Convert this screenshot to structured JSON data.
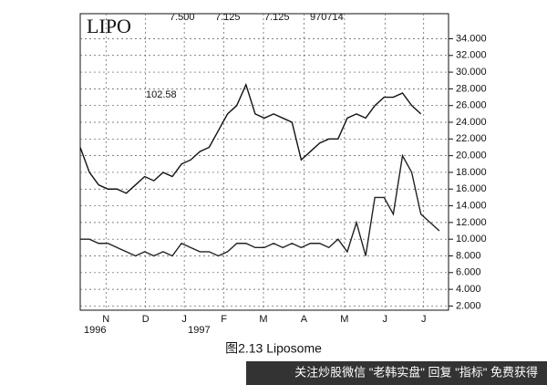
{
  "chart_data": {
    "type": "line",
    "title": "LIPO",
    "annotations": [
      "7.500",
      "7.125",
      "7.125",
      "970714",
      "102.58"
    ],
    "caption": "图2.13   Liposome",
    "watermark": "关注炒股微信 \"老韩实盘\" 回复 \"指标\" 免费获得",
    "xlim": [
      0,
      40
    ],
    "ylim": [
      1.5,
      37
    ],
    "grid": true,
    "xticks": [
      {
        "value": 2.8,
        "label": "N"
      },
      {
        "value": 7.1,
        "label": "D"
      },
      {
        "value": 11.3,
        "label": "J"
      },
      {
        "value": 15.6,
        "label": "F"
      },
      {
        "value": 19.9,
        "label": "M"
      },
      {
        "value": 24.3,
        "label": "A"
      },
      {
        "value": 28.7,
        "label": "M"
      },
      {
        "value": 33.1,
        "label": "J"
      },
      {
        "value": 37.3,
        "label": "J"
      }
    ],
    "years": [
      {
        "value": 0,
        "label": "1996"
      },
      {
        "value": 11.3,
        "label": "1997"
      }
    ],
    "yticks": [
      {
        "value": 2,
        "label": "2.000"
      },
      {
        "value": 4,
        "label": "4.000"
      },
      {
        "value": 6,
        "label": "6.000"
      },
      {
        "value": 8,
        "label": "8.000"
      },
      {
        "value": 10,
        "label": "10.000"
      },
      {
        "value": 12,
        "label": "12.000"
      },
      {
        "value": 14,
        "label": "14.000"
      },
      {
        "value": 16,
        "label": "16.000"
      },
      {
        "value": 18,
        "label": "18.000"
      },
      {
        "value": 20,
        "label": "20.000"
      },
      {
        "value": 22,
        "label": "22.000"
      },
      {
        "value": 24,
        "label": "24.000"
      },
      {
        "value": 26,
        "label": "26.000"
      },
      {
        "value": 28,
        "label": "28.000"
      },
      {
        "value": 30,
        "label": "30.000"
      },
      {
        "value": 32,
        "label": "32.000"
      },
      {
        "value": 34,
        "label": "34.000"
      }
    ],
    "series": [
      {
        "color": "#111111",
        "x": [
          0,
          1,
          2,
          3,
          4,
          5,
          6,
          7,
          8,
          9,
          10,
          11,
          12,
          13,
          14,
          15,
          16,
          17,
          18,
          19,
          20,
          21,
          22,
          23,
          24,
          25,
          26,
          27,
          28,
          29,
          30,
          31,
          32,
          33,
          34,
          35,
          36,
          37
        ],
        "values": [
          21,
          18,
          16.5,
          16,
          16,
          15.5,
          16.5,
          17.5,
          17,
          18,
          17.5,
          19,
          19.5,
          20.5,
          21,
          23,
          25,
          26,
          28.5,
          25,
          24.5,
          25,
          24.5,
          24,
          19.5,
          20.5,
          21.5,
          22,
          22,
          24.5,
          25,
          24.5,
          26,
          27,
          27,
          27.5,
          26,
          25
        ]
      },
      {
        "color": "#222222",
        "x": [
          0,
          1,
          2,
          3,
          4,
          5,
          6,
          7,
          8,
          9,
          10,
          11,
          12,
          13,
          14,
          15,
          16,
          17,
          18,
          19,
          20,
          21,
          22,
          23,
          24,
          25,
          26,
          27,
          28,
          29,
          30,
          31,
          32,
          33,
          34,
          35,
          36,
          37,
          38,
          39
        ],
        "values": [
          10,
          10,
          9.5,
          9.5,
          9,
          8.5,
          8,
          8.5,
          8,
          8.5,
          8,
          9.5,
          9,
          8.5,
          8.5,
          8,
          8.5,
          9.5,
          9.5,
          9,
          9,
          9.5,
          9,
          9.5,
          9,
          9.5,
          9.5,
          9,
          10,
          8.5,
          12,
          8,
          15,
          15,
          13,
          20,
          18,
          13,
          12,
          11
        ]
      }
    ]
  }
}
